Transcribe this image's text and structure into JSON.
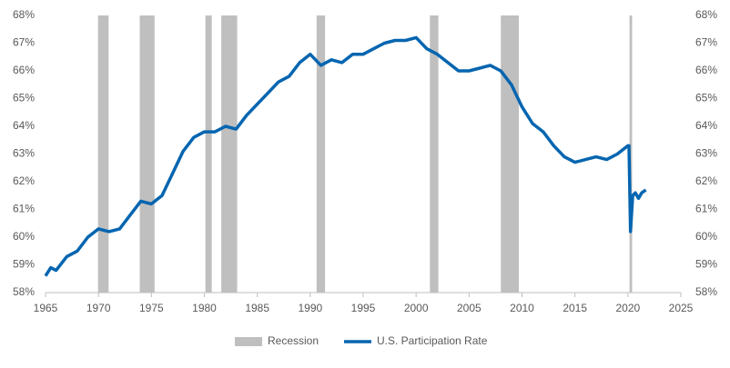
{
  "chart_data": {
    "type": "line",
    "xlim": [
      1965,
      2025
    ],
    "xticks": [
      1965,
      1970,
      1975,
      1980,
      1985,
      1990,
      1995,
      2000,
      2005,
      2010,
      2015,
      2020,
      2025
    ],
    "ylim": [
      58,
      68
    ],
    "yticks": [
      {
        "value": 58,
        "label": "58%"
      },
      {
        "value": 59,
        "label": "59%"
      },
      {
        "value": 60,
        "label": "60%"
      },
      {
        "value": 61,
        "label": "61%"
      },
      {
        "value": 62,
        "label": "62%"
      },
      {
        "value": 63,
        "label": "63%"
      },
      {
        "value": 64,
        "label": "64%"
      },
      {
        "value": 65,
        "label": "65%"
      },
      {
        "value": 66,
        "label": "66%"
      },
      {
        "value": 67,
        "label": "67%"
      },
      {
        "value": 68,
        "label": "68%"
      }
    ],
    "y2lim": [
      58,
      68
    ],
    "y2ticks": [
      {
        "value": 58,
        "label": "58%"
      },
      {
        "value": 59,
        "label": "59%"
      },
      {
        "value": 60,
        "label": "60%"
      },
      {
        "value": 61,
        "label": "61%"
      },
      {
        "value": 62,
        "label": "62%"
      },
      {
        "value": 63,
        "label": "63%"
      },
      {
        "value": 64,
        "label": "64%"
      },
      {
        "value": 65,
        "label": "65%"
      },
      {
        "value": 66,
        "label": "66%"
      },
      {
        "value": 67,
        "label": "67%"
      },
      {
        "value": 68,
        "label": "68%"
      }
    ],
    "recessions": {
      "name": "Recession",
      "color": "#bfbfbf",
      "ranges": [
        [
          1969.96,
          1970.96
        ],
        [
          1973.9,
          1975.3
        ],
        [
          1980.1,
          1980.7
        ],
        [
          1981.6,
          1983.1
        ],
        [
          1990.6,
          1991.4
        ],
        [
          2001.3,
          2002.1
        ],
        [
          2008.0,
          2009.7
        ],
        [
          2020.15,
          2020.4
        ]
      ]
    },
    "series": [
      {
        "name": "U.S. Participation Rate",
        "color": "#0565b0",
        "x": [
          1965,
          1965.5,
          1966,
          1967,
          1968,
          1969,
          1970,
          1971,
          1972,
          1973,
          1974,
          1975,
          1976,
          1977,
          1978,
          1979,
          1980,
          1981,
          1982,
          1983,
          1984,
          1985,
          1986,
          1987,
          1988,
          1989,
          1990,
          1991,
          1992,
          1993,
          1994,
          1995,
          1996,
          1997,
          1998,
          1999,
          2000,
          2001,
          2002,
          2003,
          2004,
          2005,
          2006,
          2007,
          2008,
          2009,
          2010,
          2011,
          2012,
          2013,
          2014,
          2015,
          2016,
          2017,
          2018,
          2019,
          2020,
          2020.1,
          2020.25,
          2020.45,
          2020.7,
          2021,
          2021.3,
          2021.7
        ],
        "values": [
          58.6,
          58.9,
          58.8,
          59.3,
          59.5,
          60.0,
          60.3,
          60.2,
          60.3,
          60.8,
          61.3,
          61.2,
          61.5,
          62.3,
          63.1,
          63.6,
          63.8,
          63.8,
          64.0,
          63.9,
          64.4,
          64.8,
          65.2,
          65.6,
          65.8,
          66.3,
          66.6,
          66.2,
          66.4,
          66.3,
          66.6,
          66.6,
          66.8,
          67.0,
          67.1,
          67.1,
          67.2,
          66.8,
          66.6,
          66.3,
          66.0,
          66.0,
          66.1,
          66.2,
          66.0,
          65.5,
          64.7,
          64.1,
          63.8,
          63.3,
          62.9,
          62.7,
          62.8,
          62.9,
          62.8,
          63.0,
          63.3,
          63.3,
          60.2,
          61.5,
          61.6,
          61.4,
          61.6,
          61.7
        ]
      }
    ]
  }
}
